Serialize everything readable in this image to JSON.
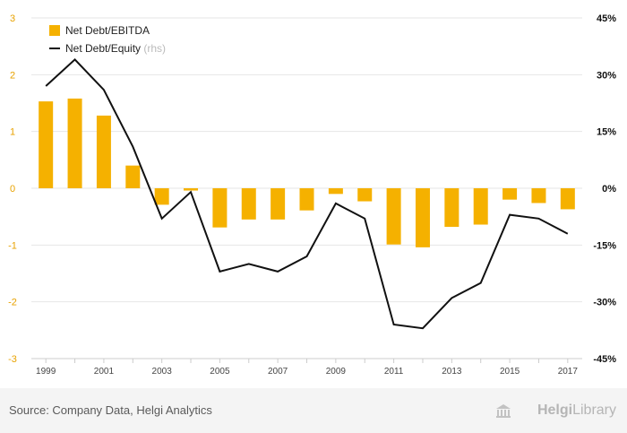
{
  "chart_data": {
    "type": "bar+line",
    "x": [
      1999,
      2000,
      2001,
      2002,
      2003,
      2004,
      2005,
      2006,
      2007,
      2008,
      2009,
      2010,
      2011,
      2012,
      2013,
      2014,
      2015,
      2016,
      2017
    ],
    "x_tick_labels": [
      "1999",
      "2001",
      "2003",
      "2005",
      "2007",
      "2009",
      "2011",
      "2013",
      "2015",
      "2017"
    ],
    "series": [
      {
        "name": "Net Debt/EBITDA",
        "type": "bar",
        "axis": "left",
        "color": "#f5b100",
        "values": [
          1.53,
          1.58,
          1.28,
          0.4,
          -0.29,
          -0.04,
          -0.69,
          -0.55,
          -0.55,
          -0.39,
          -0.1,
          -0.23,
          -0.99,
          -1.04,
          -0.68,
          -0.64,
          -0.2,
          -0.26,
          -0.37
        ]
      },
      {
        "name": "Net Debt/Equity",
        "name_suffix": "(rhs)",
        "type": "line",
        "axis": "right",
        "color": "#111111",
        "values": [
          27,
          34,
          26,
          11,
          -8,
          -1,
          -22,
          -20,
          -22,
          -18,
          -4,
          -8,
          -36,
          -37,
          -29,
          -25,
          -7,
          -8,
          -12
        ]
      }
    ],
    "y_left": {
      "range": [
        -3,
        3
      ],
      "ticks": [
        -3,
        -2,
        -1,
        0,
        1,
        2,
        3
      ],
      "tick_labels": [
        "-3",
        "-2",
        "-1",
        "0",
        "1",
        "2",
        "3"
      ]
    },
    "y_right": {
      "range": [
        -45,
        45
      ],
      "ticks": [
        -45,
        -30,
        -15,
        0,
        15,
        30,
        45
      ],
      "tick_labels": [
        "-45%",
        "-30%",
        "-15%",
        "0%",
        "15%",
        "30%",
        "45%"
      ]
    },
    "legend": "top-left",
    "grid": true
  },
  "colors": {
    "axis_left_label": "#e8a200",
    "grid": "#e6e6e6",
    "rhs_note": "#bbbbbb"
  },
  "footer": {
    "source": "Source: Company Data, Helgi Analytics",
    "brand_bold": "Helgi",
    "brand_light": "Library",
    "brand_icon": "library-building-icon"
  }
}
